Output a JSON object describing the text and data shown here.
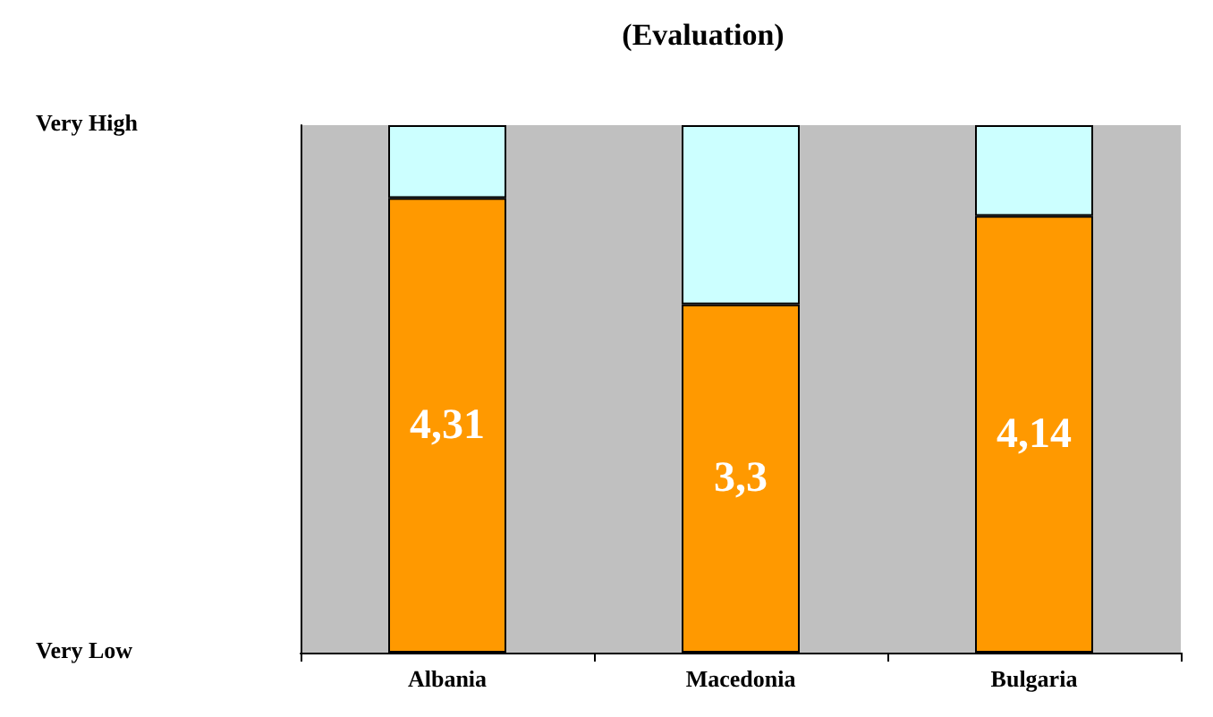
{
  "chart_data": {
    "type": "bar",
    "title": "(Evaluation)",
    "stacked": true,
    "categories": [
      "Albania",
      "Macedonia",
      "Bulgaria"
    ],
    "series": [
      {
        "color": "#ff9900",
        "values": [
          4.31,
          3.3,
          4.14
        ],
        "value_labels": [
          "4,31",
          "3,3",
          "4,14"
        ]
      },
      {
        "color": "#ccffff",
        "values": [
          0.69,
          1.7,
          0.86
        ]
      }
    ],
    "ylim": [
      0,
      5
    ],
    "annotations": [
      "Very High",
      "Very Low"
    ]
  }
}
